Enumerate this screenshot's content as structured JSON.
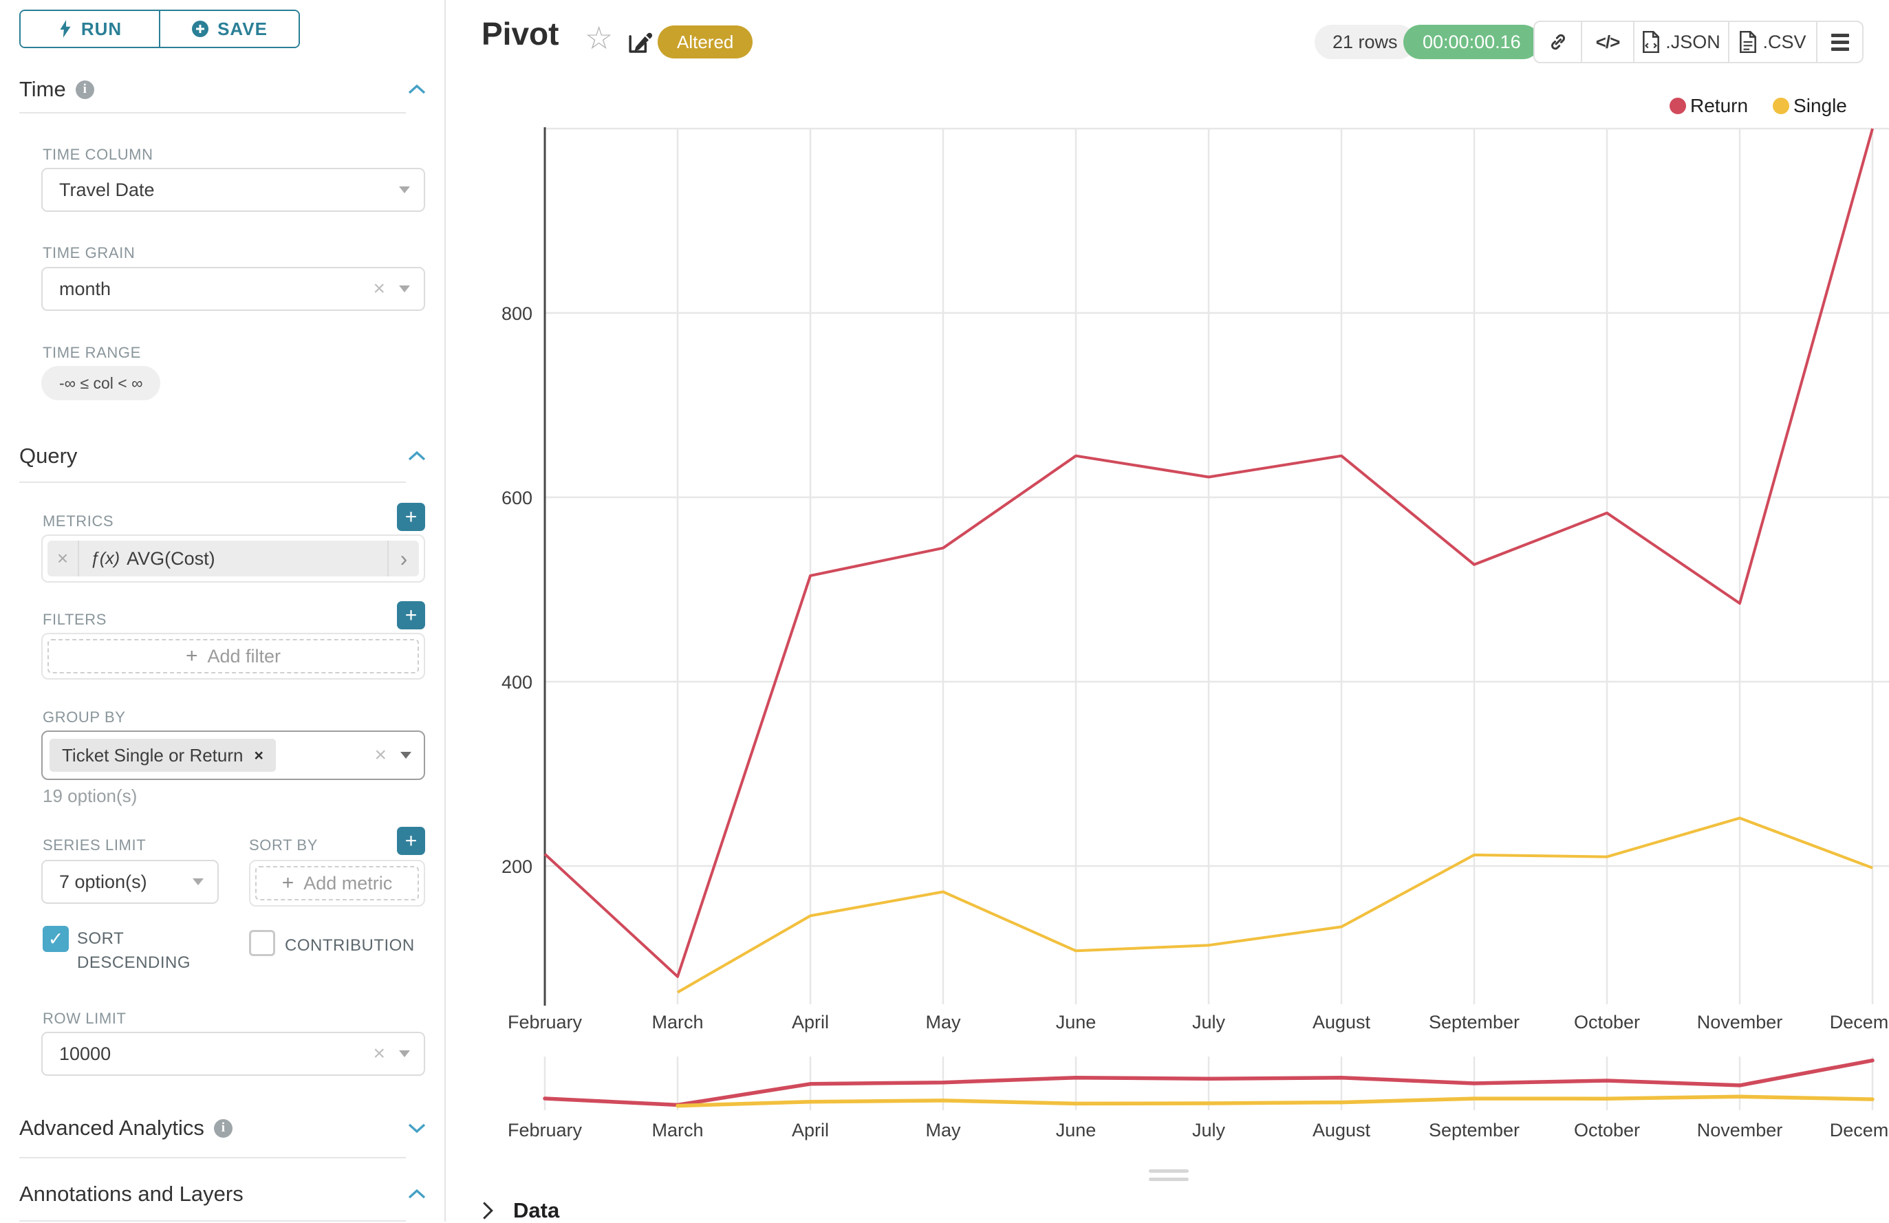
{
  "icons": {
    "plus": "+",
    "check": "✓",
    "clear": "×",
    "chevron_right": "›",
    "star": "☆",
    "code": "</>"
  },
  "toolbar": {
    "run_label": "RUN",
    "save_label": "SAVE"
  },
  "sections": {
    "time": {
      "title": "Time",
      "time_column_label": "TIME COLUMN",
      "time_column_value": "Travel Date",
      "time_grain_label": "TIME GRAIN",
      "time_grain_value": "month",
      "time_range_label": "TIME RANGE",
      "time_range_value": "-∞ ≤ col < ∞"
    },
    "query": {
      "title": "Query",
      "metrics_label": "METRICS",
      "metric_prefix": "ƒ(x)",
      "metric_value": "AVG(Cost)",
      "filters_label": "FILTERS",
      "add_filter_label": "Add filter",
      "group_by_label": "GROUP BY",
      "group_by_tag": "Ticket Single or Return",
      "group_by_hint": "19 option(s)",
      "series_limit_label": "SERIES LIMIT",
      "series_limit_value": "7 option(s)",
      "sort_by_label": "SORT BY",
      "add_metric_label": "Add metric",
      "sort_descending_label": "SORT DESCENDING",
      "contribution_label": "CONTRIBUTION",
      "row_limit_label": "ROW LIMIT",
      "row_limit_value": "10000"
    },
    "advanced": {
      "title": "Advanced Analytics"
    },
    "annotations": {
      "title": "Annotations and Layers"
    }
  },
  "header": {
    "title": "Pivot",
    "badge": "Altered",
    "rows": "21 rows",
    "timer": "00:00:00.16",
    "json_label": ".JSON",
    "csv_label": ".CSV"
  },
  "panel": {
    "data_label": "Data"
  },
  "chart_data": {
    "type": "line",
    "categories": [
      "February",
      "March",
      "April",
      "May",
      "June",
      "July",
      "August",
      "September",
      "October",
      "November",
      "December"
    ],
    "series": [
      {
        "name": "Return",
        "color": "#d04a5b",
        "values": [
          213,
          80,
          515,
          545,
          645,
          622,
          645,
          527,
          583,
          485,
          1000
        ]
      },
      {
        "name": "Single",
        "color": "#f2c03e",
        "values": [
          null,
          63,
          146,
          172,
          108,
          114,
          134,
          212,
          210,
          252,
          198
        ]
      }
    ],
    "yticks": [
      200,
      400,
      600,
      800
    ],
    "ylim": [
      50,
      1000
    ],
    "xlabel": "",
    "ylabel": "",
    "grid": true,
    "legend_position": "top-right",
    "has_brush_minichart": true
  }
}
